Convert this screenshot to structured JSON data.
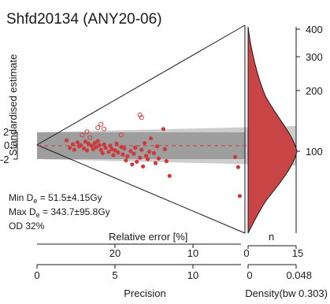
{
  "chart_data": {
    "type": "scatter",
    "title": "Shfd20134 (ANY20-06)",
    "ylabel": "Standardised estimate",
    "y_ticks": [
      "2",
      "0",
      "-2"
    ],
    "xlabel_precision": "Precision",
    "x_precision_ticks": [
      "0",
      "5",
      "10"
    ],
    "xlim_precision": [
      0,
      13
    ],
    "relative_error_label": "Relative error [%]",
    "relative_error_ticks": [
      "20",
      "10"
    ],
    "right_axis_ticks": [
      "400",
      "300",
      "200",
      "100"
    ],
    "density_label": "Density(bw 0.303)",
    "density_ticks": [
      "0",
      "0.048"
    ],
    "n_label": "n",
    "n_ticks": [
      "0",
      "15"
    ],
    "stats": {
      "min_prefix": "Min D",
      "min_sub": "e",
      "min_value": " = 51.5±4.15Gy",
      "max_prefix": "Max D",
      "max_sub": "e",
      "max_value": " = 343.7±95.8Gy",
      "od": "OD 32%"
    },
    "colors": {
      "points": "#cd3a3a",
      "open_points": "#cd3a3a",
      "density": "#c94545",
      "band_dark": "#8e8e8e",
      "band_light": "#cdcdcd",
      "centre_line": "#cd3a3a"
    },
    "points": [
      {
        "x": 1.9,
        "y": 0.8
      },
      {
        "x": 2.1,
        "y": -0.3
      },
      {
        "x": 2.3,
        "y": 0.2
      },
      {
        "x": 2.4,
        "y": -0.6
      },
      {
        "x": 2.6,
        "y": 0.5
      },
      {
        "x": 2.7,
        "y": -0.1
      },
      {
        "x": 2.8,
        "y": 0.1
      },
      {
        "x": 3.0,
        "y": -0.4
      },
      {
        "x": 3.1,
        "y": 0.6
      },
      {
        "x": 3.2,
        "y": -0.7
      },
      {
        "x": 3.3,
        "y": 0.3
      },
      {
        "x": 3.5,
        "y": 0.0
      },
      {
        "x": 3.6,
        "y": -0.5
      },
      {
        "x": 3.7,
        "y": 0.4
      },
      {
        "x": 3.8,
        "y": -0.2
      },
      {
        "x": 3.9,
        "y": 0.7
      },
      {
        "x": 4.0,
        "y": 0.1
      },
      {
        "x": 4.1,
        "y": -0.6
      },
      {
        "x": 4.2,
        "y": -1.1
      },
      {
        "x": 4.3,
        "y": 0.2
      },
      {
        "x": 4.4,
        "y": -0.3
      },
      {
        "x": 4.6,
        "y": -0.9
      },
      {
        "x": 4.7,
        "y": 0.0
      },
      {
        "x": 4.8,
        "y": -0.5
      },
      {
        "x": 4.9,
        "y": -1.4
      },
      {
        "x": 5.0,
        "y": -0.7
      },
      {
        "x": 5.1,
        "y": 0.3
      },
      {
        "x": 5.2,
        "y": -1.0
      },
      {
        "x": 5.4,
        "y": -0.2
      },
      {
        "x": 5.5,
        "y": -1.3
      },
      {
        "x": 5.6,
        "y": -0.4
      },
      {
        "x": 5.7,
        "y": -2.2
      },
      {
        "x": 5.8,
        "y": -1.6
      },
      {
        "x": 6.0,
        "y": -0.8
      },
      {
        "x": 6.1,
        "y": -2.8
      },
      {
        "x": 6.2,
        "y": -1.2
      },
      {
        "x": 6.3,
        "y": -0.3
      },
      {
        "x": 6.4,
        "y": -2.4
      },
      {
        "x": 6.6,
        "y": -1.8
      },
      {
        "x": 6.7,
        "y": -0.6
      },
      {
        "x": 6.8,
        "y": -3.1
      },
      {
        "x": 6.9,
        "y": 0.4
      },
      {
        "x": 7.0,
        "y": -1.5
      },
      {
        "x": 7.1,
        "y": -2.0
      },
      {
        "x": 7.2,
        "y": -0.9
      },
      {
        "x": 7.3,
        "y": 1.1
      },
      {
        "x": 7.5,
        "y": -1.1
      },
      {
        "x": 7.6,
        "y": -2.6
      },
      {
        "x": 7.7,
        "y": -0.1
      },
      {
        "x": 7.8,
        "y": -1.9
      },
      {
        "x": 8.1,
        "y": 2.5
      },
      {
        "x": 8.2,
        "y": -0.5
      },
      {
        "x": 8.3,
        "y": -2.3
      },
      {
        "x": 8.5,
        "y": -4.5
      },
      {
        "x": 12.7,
        "y": -1.7
      },
      {
        "x": 12.9,
        "y": -3.2
      },
      {
        "x": 13.0,
        "y": -7.5
      }
    ],
    "open_points": [
      {
        "x": 2.9,
        "y": 1.6
      },
      {
        "x": 3.2,
        "y": 2.1
      },
      {
        "x": 3.4,
        "y": 1.2
      },
      {
        "x": 3.9,
        "y": 2.7
      },
      {
        "x": 4.1,
        "y": 3.2
      },
      {
        "x": 4.3,
        "y": 2.5
      },
      {
        "x": 5.4,
        "y": 1.6
      },
      {
        "x": 6.6,
        "y": 4.6
      },
      {
        "x": 6.7,
        "y": 4.2
      }
    ]
  }
}
